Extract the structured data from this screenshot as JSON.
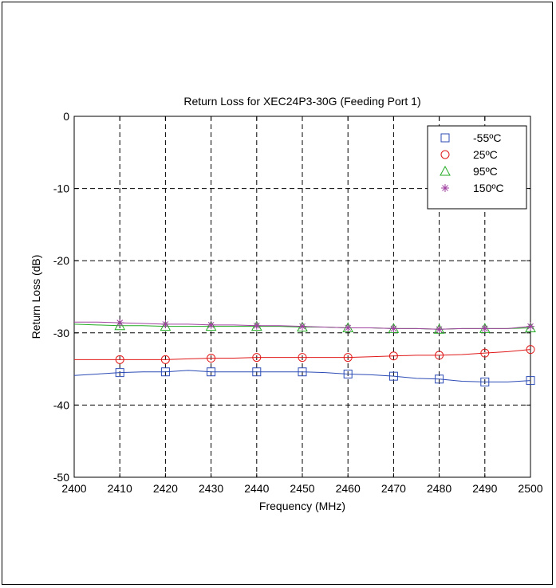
{
  "chart_data": {
    "type": "line",
    "title": "Return Loss for XEC24P3-30G (Feeding Port 1)",
    "xlabel": "Frequency (MHz)",
    "ylabel": "Return Loss (dB)",
    "xlim": [
      2400,
      2500
    ],
    "ylim": [
      -50,
      0
    ],
    "xticks": [
      2400,
      2410,
      2420,
      2430,
      2440,
      2450,
      2460,
      2470,
      2480,
      2490,
      2500
    ],
    "yticks": [
      0,
      -10,
      -20,
      -30,
      -40,
      -50
    ],
    "grid": true,
    "legend_position": "top-right",
    "series": [
      {
        "name": "-55ºC",
        "marker": "square",
        "color": "#2b4bb5",
        "x": [
          2400,
          2405,
          2410,
          2415,
          2420,
          2425,
          2430,
          2435,
          2440,
          2445,
          2450,
          2455,
          2460,
          2465,
          2470,
          2475,
          2480,
          2485,
          2490,
          2495,
          2500
        ],
        "y": [
          -35.9,
          -35.7,
          -35.5,
          -35.4,
          -35.4,
          -35.2,
          -35.4,
          -35.4,
          -35.4,
          -35.4,
          -35.4,
          -35.5,
          -35.7,
          -35.8,
          -36.0,
          -36.3,
          -36.4,
          -36.7,
          -36.8,
          -36.8,
          -36.6
        ],
        "marker_x": [
          2410,
          2420,
          2430,
          2440,
          2450,
          2460,
          2470,
          2480,
          2490,
          2500
        ]
      },
      {
        "name": "25ºC",
        "marker": "circle",
        "color": "#e01818",
        "x": [
          2400,
          2405,
          2410,
          2415,
          2420,
          2425,
          2430,
          2435,
          2440,
          2445,
          2450,
          2455,
          2460,
          2465,
          2470,
          2475,
          2480,
          2485,
          2490,
          2495,
          2500
        ],
        "y": [
          -33.7,
          -33.7,
          -33.7,
          -33.7,
          -33.7,
          -33.6,
          -33.5,
          -33.5,
          -33.4,
          -33.4,
          -33.4,
          -33.4,
          -33.4,
          -33.3,
          -33.2,
          -33.1,
          -33.1,
          -33.0,
          -32.8,
          -32.6,
          -32.3
        ],
        "marker_x": [
          2410,
          2420,
          2430,
          2440,
          2450,
          2460,
          2470,
          2480,
          2490,
          2500
        ]
      },
      {
        "name": "95ºC",
        "marker": "triangle",
        "color": "#22aa22",
        "x": [
          2400,
          2405,
          2410,
          2415,
          2420,
          2425,
          2430,
          2435,
          2440,
          2445,
          2450,
          2455,
          2460,
          2465,
          2470,
          2475,
          2480,
          2485,
          2490,
          2495,
          2500
        ],
        "y": [
          -28.8,
          -28.9,
          -29.0,
          -29.0,
          -29.1,
          -29.1,
          -29.1,
          -29.1,
          -29.1,
          -29.1,
          -29.2,
          -29.2,
          -29.3,
          -29.3,
          -29.4,
          -29.4,
          -29.5,
          -29.4,
          -29.4,
          -29.4,
          -29.3
        ],
        "marker_x": [
          2410,
          2420,
          2430,
          2440,
          2450,
          2460,
          2470,
          2480,
          2490,
          2500
        ]
      },
      {
        "name": "150ºC",
        "marker": "asterisk",
        "color": "#a040a0",
        "x": [
          2400,
          2405,
          2410,
          2415,
          2420,
          2425,
          2430,
          2435,
          2440,
          2445,
          2450,
          2455,
          2460,
          2465,
          2470,
          2475,
          2480,
          2485,
          2490,
          2495,
          2500
        ],
        "y": [
          -28.5,
          -28.5,
          -28.6,
          -28.7,
          -28.8,
          -28.8,
          -28.9,
          -28.9,
          -29.0,
          -29.0,
          -29.1,
          -29.2,
          -29.3,
          -29.3,
          -29.4,
          -29.4,
          -29.5,
          -29.4,
          -29.4,
          -29.4,
          -29.1
        ],
        "marker_x": [
          2410,
          2420,
          2430,
          2440,
          2450,
          2460,
          2470,
          2480,
          2490,
          2500
        ]
      }
    ]
  }
}
